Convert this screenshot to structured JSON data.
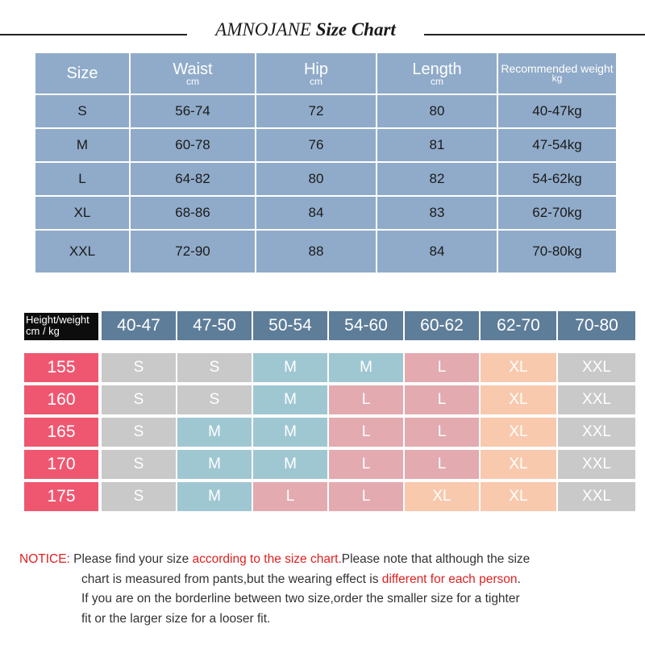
{
  "title": {
    "brand": "AMNOJANE",
    "text": "Size Chart"
  },
  "size_table": {
    "headers": [
      {
        "label": "Size",
        "unit": ""
      },
      {
        "label": "Waist",
        "unit": "cm"
      },
      {
        "label": "Hip",
        "unit": "cm"
      },
      {
        "label": "Length",
        "unit": "cm"
      },
      {
        "label": "Recommended weight",
        "unit": "kg"
      }
    ],
    "rows": [
      [
        "S",
        "56-74",
        "72",
        "80",
        "40-47kg"
      ],
      [
        "M",
        "60-78",
        "76",
        "81",
        "47-54kg"
      ],
      [
        "L",
        "64-82",
        "80",
        "82",
        "54-62kg"
      ],
      [
        "XL",
        "68-86",
        "84",
        "83",
        "62-70kg"
      ],
      [
        "XXL",
        "72-90",
        "88",
        "84",
        "70-80kg"
      ]
    ]
  },
  "fit_table": {
    "corner_line1": "Height/weight",
    "corner_line2": "cm   /  kg",
    "weights": [
      "40-47",
      "47-50",
      "50-54",
      "54-60",
      "60-62",
      "62-70",
      "70-80"
    ],
    "rows": [
      {
        "height": "155",
        "sizes": [
          "S",
          "S",
          "M",
          "M",
          "L",
          "XL",
          "XXL"
        ]
      },
      {
        "height": "160",
        "sizes": [
          "S",
          "S",
          "M",
          "L",
          "L",
          "XL",
          "XXL"
        ]
      },
      {
        "height": "165",
        "sizes": [
          "S",
          "M",
          "M",
          "L",
          "L",
          "XL",
          "XXL"
        ]
      },
      {
        "height": "170",
        "sizes": [
          "S",
          "M",
          "M",
          "L",
          "L",
          "XL",
          "XXL"
        ]
      },
      {
        "height": "175",
        "sizes": [
          "S",
          "M",
          "L",
          "L",
          "XL",
          "XL",
          "XXL"
        ]
      }
    ],
    "colors": {
      "S": "#c9c9c9",
      "M": "#9fc7d2",
      "L": "#e3aab0",
      "XL": "#f8c9ad",
      "XXL": "#c9c9c9",
      "height": "#ef5770",
      "weight_header": "#5e7d99"
    }
  },
  "notice": {
    "label": "NOTICE:",
    "l1a": " Please find your size ",
    "l1b": "according to the size chart.",
    "l1c": "Please note that although the size",
    "l2a": "chart is measured from pants,but the wearing effect is ",
    "l2b": "different for each person",
    "l2c": ".",
    "l3": "If you are on the borderline between two size,order the smaller size for a tighter",
    "l4": "fit or the larger size for a looser fit."
  }
}
